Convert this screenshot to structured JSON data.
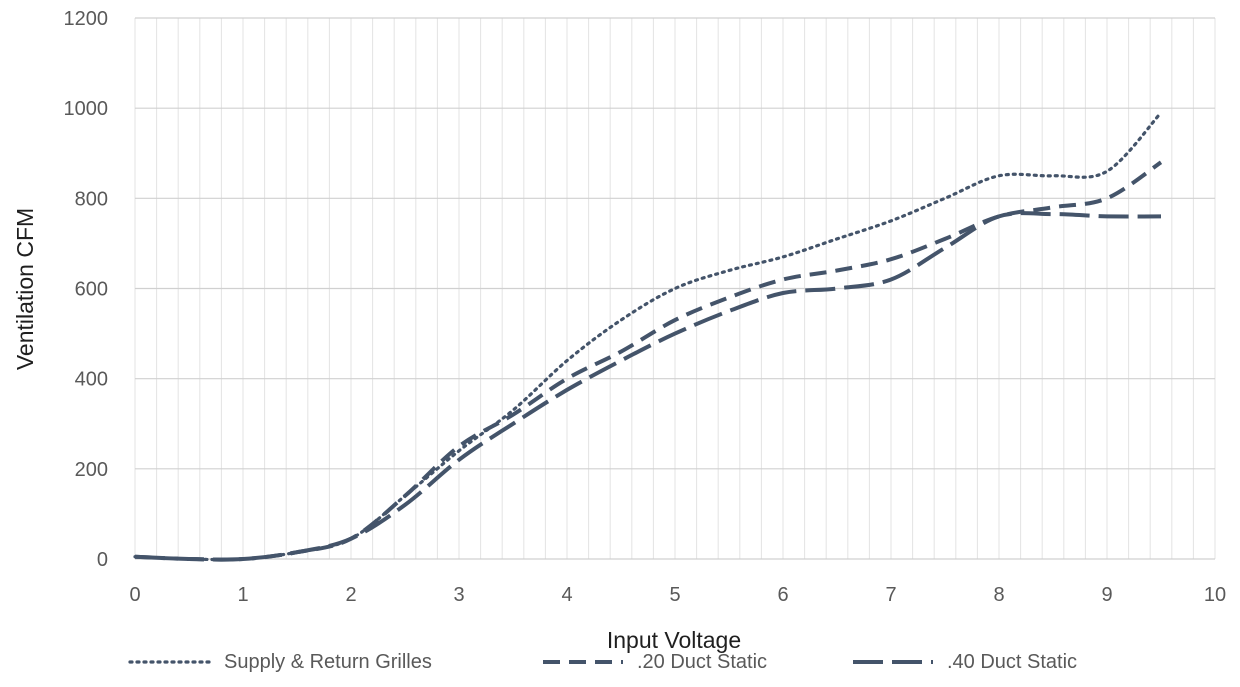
{
  "chart_data": {
    "type": "line",
    "title": "",
    "xlabel": "Input Voltage",
    "ylabel": "Ventilation CFM",
    "xlim": [
      0,
      10
    ],
    "ylim": [
      0,
      1200
    ],
    "xticks": [
      0,
      1,
      2,
      3,
      4,
      5,
      6,
      7,
      8,
      9,
      10
    ],
    "yticks": [
      0,
      200,
      400,
      600,
      800,
      1000,
      1200
    ],
    "grid": {
      "major_y": true,
      "minor_x": true,
      "minor_x_step": 0.2
    },
    "legend_position": "bottom",
    "series": [
      {
        "name": "Supply & Return Grilles",
        "style": "dotted",
        "color": "#44546a",
        "x": [
          0,
          0.5,
          1,
          1.5,
          2,
          2.5,
          3,
          3.5,
          4,
          4.5,
          5,
          5.5,
          6,
          6.5,
          7,
          7.5,
          8,
          8.5,
          9,
          9.5
        ],
        "y": [
          5,
          0,
          0,
          15,
          45,
          140,
          240,
          330,
          440,
          530,
          600,
          640,
          670,
          710,
          750,
          800,
          850,
          850,
          860,
          990
        ]
      },
      {
        "name": ".20 Duct Static",
        "style": "dashed",
        "color": "#44546a",
        "x": [
          0,
          0.5,
          1,
          1.5,
          2,
          2.5,
          3,
          3.5,
          4,
          4.5,
          5,
          5.5,
          6,
          6.5,
          7,
          7.5,
          8,
          8.5,
          9,
          9.5
        ],
        "y": [
          5,
          0,
          0,
          15,
          45,
          140,
          250,
          320,
          400,
          460,
          530,
          580,
          620,
          640,
          665,
          710,
          760,
          780,
          800,
          880
        ]
      },
      {
        "name": ".40 Duct Static",
        "style": "long-dash",
        "color": "#44546a",
        "x": [
          0,
          0.5,
          1,
          1.5,
          2,
          2.5,
          3,
          3.5,
          4,
          4.5,
          5,
          5.5,
          6,
          6.5,
          7,
          7.5,
          8,
          8.5,
          9,
          9.5
        ],
        "y": [
          5,
          0,
          0,
          15,
          45,
          120,
          220,
          300,
          375,
          440,
          500,
          550,
          590,
          600,
          620,
          690,
          760,
          765,
          760,
          760
        ]
      }
    ]
  }
}
